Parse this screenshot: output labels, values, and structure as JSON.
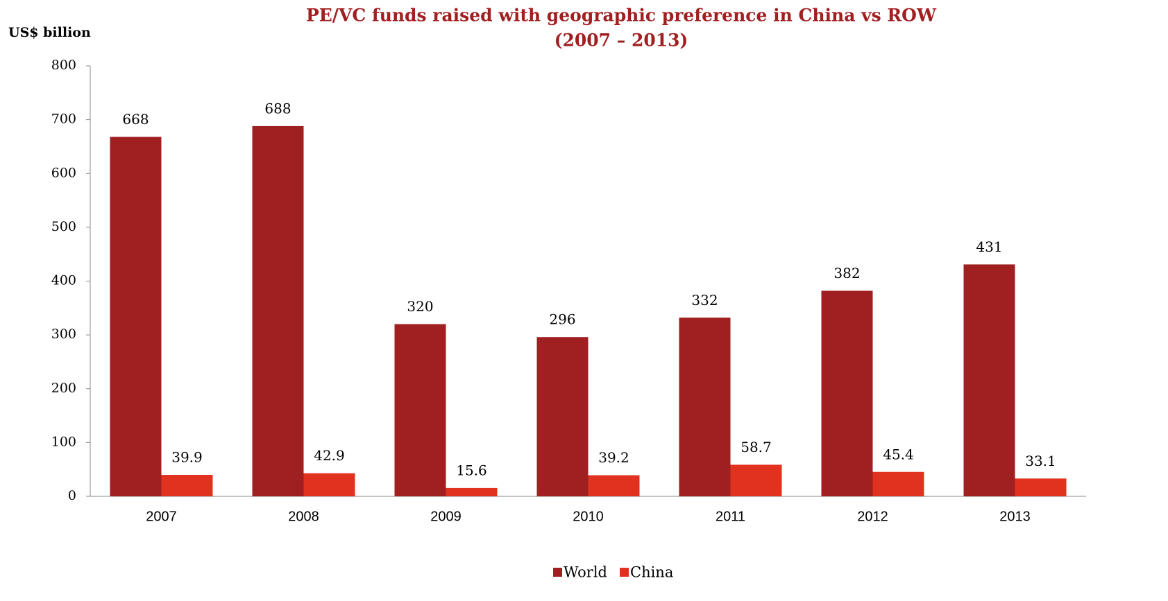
{
  "chart_data": {
    "type": "bar",
    "title": [
      "PE/VC funds raised with geographic preference in China vs ROW",
      "(2007 – 2013)"
    ],
    "y_label": "US$ billion",
    "categories": [
      "2007",
      "2008",
      "2009",
      "2010",
      "2011",
      "2012",
      "2013"
    ],
    "series": [
      {
        "name": "World",
        "color": "#a01f20",
        "values": [
          668,
          688,
          320,
          296,
          332,
          382,
          431
        ]
      },
      {
        "name": "China",
        "color": "#e0321f",
        "values": [
          39.9,
          42.9,
          15.6,
          39.2,
          58.7,
          45.4,
          33.1
        ]
      }
    ],
    "ylim": [
      0,
      800
    ],
    "yticks": [
      0,
      100,
      200,
      300,
      400,
      500,
      600,
      700,
      800
    ],
    "grid": false,
    "legend": "bottom"
  }
}
